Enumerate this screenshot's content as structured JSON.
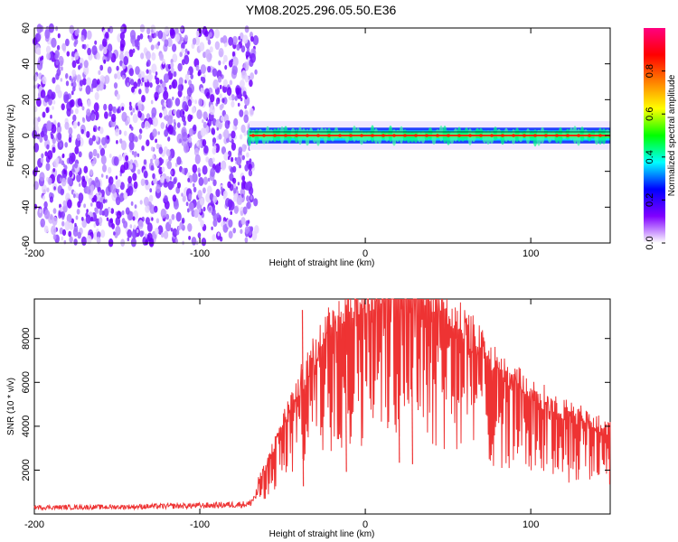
{
  "title": "YM08.2025.296.05.50.E36",
  "chart_data": [
    {
      "type": "heatmap",
      "title": "YM08.2025.296.05.50.E36",
      "xlabel": "Height of straight line (km)",
      "ylabel": "Frequency (Hz)",
      "xlim": [
        -200,
        148
      ],
      "ylim": [
        -60,
        60
      ],
      "x_ticks": [
        -200,
        -100,
        0,
        100
      ],
      "y_ticks": [
        -60,
        -40,
        -20,
        0,
        20,
        40,
        60
      ],
      "noise_region_x": [
        -200,
        -70
      ],
      "signal_band": {
        "x_start": -70,
        "x_end": 148,
        "center_hz": 0,
        "halfwidth_hz": 2
      },
      "colorbar": {
        "label": "Normalized spectral amplitude",
        "range": [
          0.0,
          1.0
        ],
        "ticks": [
          0.0,
          0.2,
          0.4,
          0.6,
          0.8
        ],
        "tick_labels": [
          "0.0",
          "0.2",
          "0.4",
          "0.6",
          "0.8"
        ],
        "colormap": [
          "#ffffff",
          "#8000ff",
          "#0000ff",
          "#00ffff",
          "#00ff00",
          "#ffff00",
          "#ff8000",
          "#ff0000",
          "#ff0080"
        ]
      }
    },
    {
      "type": "line",
      "xlabel": "Height of straight line (km)",
      "ylabel": "SNR (10 * v/v)",
      "xlim": [
        -200,
        148
      ],
      "ylim": [
        0,
        9800
      ],
      "x_ticks": [
        -200,
        -100,
        0,
        100
      ],
      "y_ticks": [
        2000,
        4000,
        6000,
        8000
      ],
      "line_color": "#ee3333",
      "series": [
        {
          "name": "SNR",
          "envelope": [
            {
              "x": -200,
              "y": 300
            },
            {
              "x": -150,
              "y": 320
            },
            {
              "x": -100,
              "y": 380
            },
            {
              "x": -70,
              "y": 450
            },
            {
              "x": -60,
              "y": 1500
            },
            {
              "x": -50,
              "y": 2800
            },
            {
              "x": -40,
              "y": 4000
            },
            {
              "x": -30,
              "y": 5000
            },
            {
              "x": -20,
              "y": 6000
            },
            {
              "x": -10,
              "y": 6500
            },
            {
              "x": 0,
              "y": 6800
            },
            {
              "x": 10,
              "y": 7200
            },
            {
              "x": 20,
              "y": 7800
            },
            {
              "x": 30,
              "y": 7500
            },
            {
              "x": 40,
              "y": 6800
            },
            {
              "x": 60,
              "y": 5800
            },
            {
              "x": 80,
              "y": 4500
            },
            {
              "x": 100,
              "y": 3800
            },
            {
              "x": 120,
              "y": 3200
            },
            {
              "x": 148,
              "y": 2600
            }
          ],
          "spikes": [
            {
              "x": -38,
              "y": 9300
            },
            {
              "x": -12,
              "y": 9300
            },
            {
              "x": 20,
              "y": 9800
            },
            {
              "x": 28,
              "y": 9400
            }
          ]
        }
      ]
    }
  ]
}
